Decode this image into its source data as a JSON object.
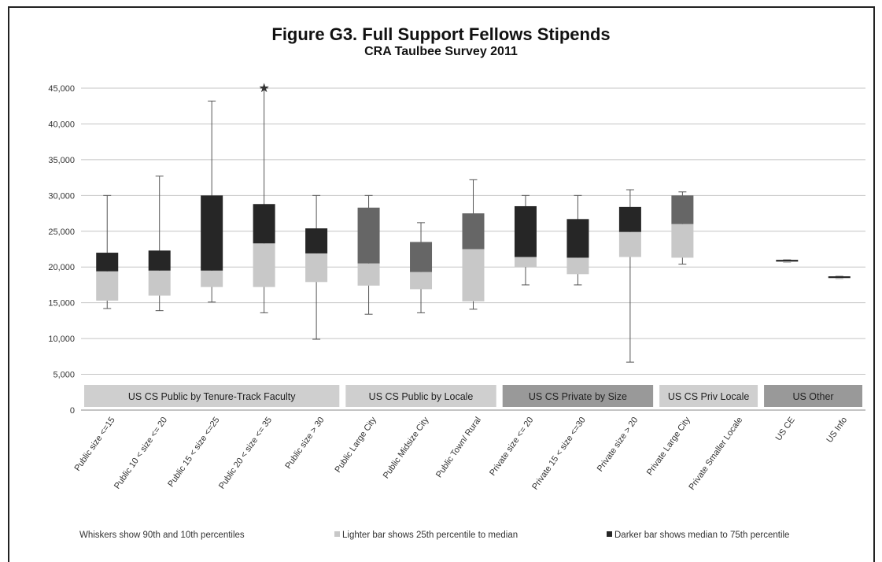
{
  "chart_data": {
    "type": "box",
    "title": "Figure G3. Full Support Fellows Stipends",
    "subtitle": "CRA Taulbee Survey 2011",
    "ylim": [
      0,
      45000
    ],
    "yticks": [
      "0",
      "5,000",
      "10,000",
      "15,000",
      "20,000",
      "25,000",
      "30,000",
      "35,000",
      "40,000",
      "45,000"
    ],
    "grid": true,
    "categories": [
      "Public size <=15",
      "Public 10 < size <= 20",
      "Public 15 < size <=25",
      "Public 20 < size <= 35",
      "Public size > 30",
      "Public Large City",
      "Public Midsize City",
      "Public Town/ Rural",
      "Private size <= 20",
      "Private 15 < size <=30",
      "Private size > 20",
      "Private Large City",
      "Private Smaller Locale",
      "US CE",
      "US Info"
    ],
    "series": [
      {
        "category": "Public size <=15",
        "p10": 14200,
        "p25": 15300,
        "median": 19400,
        "p75": 22000,
        "p90": 30000,
        "shade": "dark"
      },
      {
        "category": "Public 10 < size <= 20",
        "p10": 13900,
        "p25": 16000,
        "median": 19500,
        "p75": 22300,
        "p90": 32700,
        "shade": "dark"
      },
      {
        "category": "Public 15 < size <=25",
        "p10": 15100,
        "p25": 17200,
        "median": 19500,
        "p75": 30000,
        "p90": 43200,
        "shade": "dark"
      },
      {
        "category": "Public 20 < size <= 35",
        "p10": 13600,
        "p25": 17200,
        "median": 23300,
        "p75": 28800,
        "p90": 45000,
        "shade": "dark",
        "marker": "star"
      },
      {
        "category": "Public size > 30",
        "p10": 9900,
        "p25": 17900,
        "median": 21900,
        "p75": 25400,
        "p90": 30000,
        "shade": "dark"
      },
      {
        "category": "Public Large City",
        "p10": 13400,
        "p25": 17400,
        "median": 20500,
        "p75": 28300,
        "p90": 30000,
        "shade": "medium"
      },
      {
        "category": "Public Midsize City",
        "p10": 13600,
        "p25": 16900,
        "median": 19300,
        "p75": 23500,
        "p90": 26200,
        "shade": "medium"
      },
      {
        "category": "Public Town/ Rural",
        "p10": 14100,
        "p25": 15200,
        "median": 22500,
        "p75": 27500,
        "p90": 32200,
        "shade": "medium"
      },
      {
        "category": "Private size <= 20",
        "p10": 17500,
        "p25": 20000,
        "median": 21400,
        "p75": 28500,
        "p90": 30000,
        "shade": "dark"
      },
      {
        "category": "Private 15 < size <=30",
        "p10": 17500,
        "p25": 19000,
        "median": 21300,
        "p75": 26700,
        "p90": 30000,
        "shade": "dark"
      },
      {
        "category": "Private size > 20",
        "p10": 6700,
        "p25": 21400,
        "median": 24900,
        "p75": 28400,
        "p90": 30800,
        "shade": "dark"
      },
      {
        "category": "Private Large City",
        "p10": 20400,
        "p25": 21300,
        "median": 26000,
        "p75": 30000,
        "p90": 30500,
        "shade": "medium"
      },
      {
        "category": "Private Smaller Locale",
        "p10": null,
        "p25": null,
        "median": null,
        "p75": null,
        "p90": null,
        "shade": "none"
      },
      {
        "category": "US CE",
        "p10": 20700,
        "p25": 20700,
        "median": 20800,
        "p75": 21000,
        "p90": 21000,
        "shade": "dark"
      },
      {
        "category": "US Info",
        "p10": 18400,
        "p25": 18400,
        "median": 18500,
        "p75": 18700,
        "p90": 18700,
        "shade": "dark"
      }
    ],
    "group_labels": [
      {
        "label": "US CS Public by Tenure-Track Faculty",
        "first": 0,
        "last": 4,
        "tone": "light"
      },
      {
        "label": "US CS Public by Locale",
        "first": 5,
        "last": 7,
        "tone": "light"
      },
      {
        "label": "US CS Private by Size",
        "first": 8,
        "last": 10,
        "tone": "mid"
      },
      {
        "label": "US CS Priv Locale",
        "first": 11,
        "last": 12,
        "tone": "light"
      },
      {
        "label": "US Other",
        "first": 13,
        "last": 14,
        "tone": "mid"
      }
    ],
    "legend": [
      {
        "text": "Whiskers show 90th and 10th percentiles",
        "swatch": "none"
      },
      {
        "text": "Lighter bar shows 25th percentile to median",
        "swatch": "light"
      },
      {
        "text": "Darker bar shows median to 75th percentile",
        "swatch": "dark"
      }
    ]
  },
  "colors": {
    "light_bar": "#c8c8c8",
    "dark_bar": "#262626",
    "medium_bar": "#666666",
    "whisker": "#555555",
    "grid": "#c4c4c4",
    "group_light": "#cfcfcf",
    "group_mid": "#999999"
  }
}
